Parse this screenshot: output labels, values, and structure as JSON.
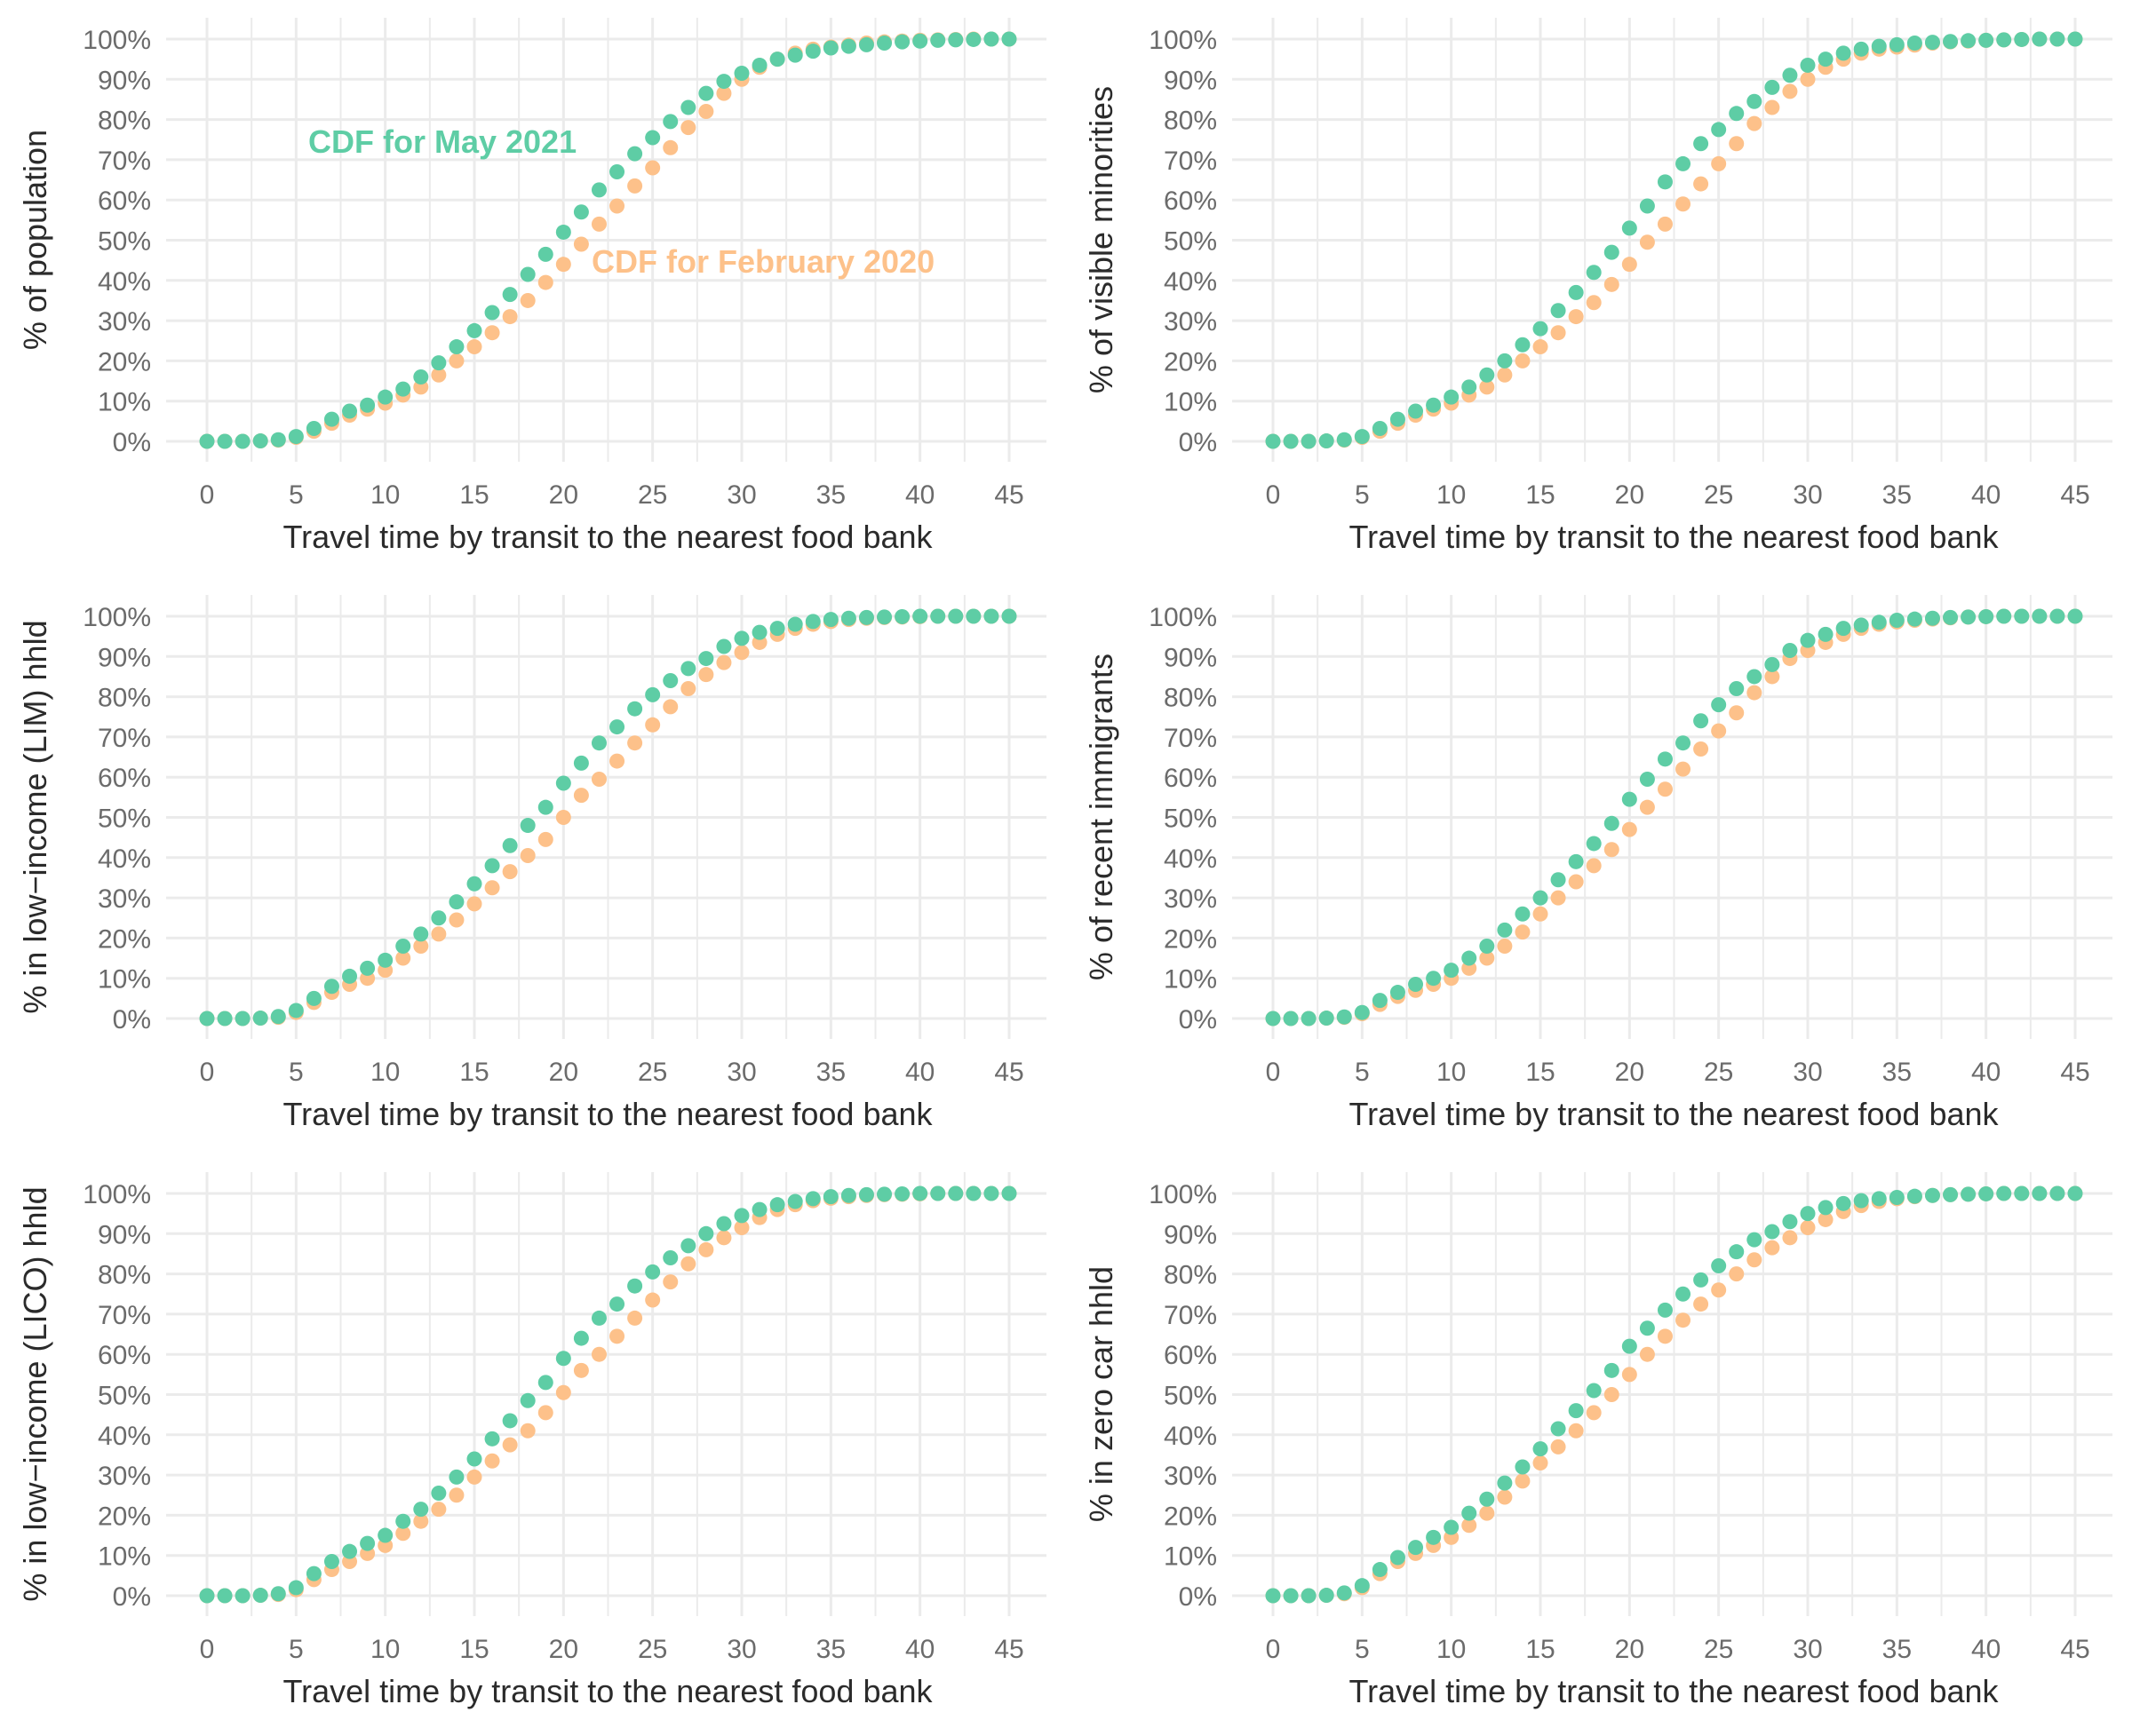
{
  "colors": {
    "may_2021": "#5ecda5",
    "feb_2020": "#fdc18a",
    "grid": "#ebebeb",
    "tick": "#6b6b6b",
    "title": "#2b2b2b"
  },
  "annotations": {
    "may_2021": "CDF for May 2021",
    "feb_2020": "CDF for February 2020"
  },
  "chart_data": [
    {
      "type": "scatter",
      "xlabel": "Travel time by transit to the nearest food bank",
      "ylabel": "% of population",
      "xlim": [
        0,
        45
      ],
      "ylim": [
        0,
        100
      ],
      "x_ticks": [
        0,
        5,
        10,
        15,
        20,
        25,
        30,
        35,
        40,
        45
      ],
      "y_ticks": [
        "0%",
        "10%",
        "20%",
        "30%",
        "40%",
        "50%",
        "60%",
        "70%",
        "80%",
        "90%",
        "100%"
      ],
      "grid": true,
      "x": [
        0,
        1,
        2,
        3,
        4,
        5,
        6,
        7,
        8,
        9,
        10,
        11,
        12,
        13,
        14,
        15,
        16,
        17,
        18,
        19,
        20,
        21,
        22,
        23,
        24,
        25,
        26,
        27,
        28,
        29,
        30,
        31,
        32,
        33,
        34,
        35,
        36,
        37,
        38,
        39,
        40,
        41,
        42,
        43,
        44,
        45
      ],
      "series": [
        {
          "name": "CDF for February 2020",
          "values": [
            0,
            0,
            0,
            0.1,
            0.3,
            1.0,
            2.5,
            4.5,
            6.5,
            8.0,
            9.5,
            11.5,
            13.5,
            16.5,
            20.0,
            23.5,
            27.0,
            31.0,
            35.0,
            39.5,
            44.0,
            49.0,
            54.0,
            58.5,
            63.5,
            68.0,
            73.0,
            78.0,
            82.0,
            86.5,
            90.0,
            93.0,
            95.0,
            96.5,
            97.5,
            98.0,
            98.5,
            99.0,
            99.3,
            99.5,
            99.7,
            99.8,
            99.9,
            100,
            100,
            100
          ]
        },
        {
          "name": "CDF for May 2021",
          "values": [
            0,
            0,
            0,
            0.1,
            0.4,
            1.2,
            3.2,
            5.5,
            7.5,
            9.0,
            11.0,
            13.0,
            16.0,
            19.5,
            23.5,
            27.5,
            32.0,
            36.5,
            41.5,
            46.5,
            52.0,
            57.0,
            62.5,
            67.0,
            71.5,
            75.5,
            79.5,
            83.0,
            86.5,
            89.5,
            91.5,
            93.5,
            95.0,
            96.0,
            97.0,
            97.8,
            98.2,
            98.6,
            99.0,
            99.3,
            99.5,
            99.7,
            99.8,
            99.9,
            100,
            100
          ]
        }
      ]
    },
    {
      "type": "scatter",
      "xlabel": "Travel time by transit to the nearest food bank",
      "ylabel": "% of visible minorities",
      "xlim": [
        0,
        45
      ],
      "ylim": [
        0,
        100
      ],
      "x_ticks": [
        0,
        5,
        10,
        15,
        20,
        25,
        30,
        35,
        40,
        45
      ],
      "y_ticks": [
        "0%",
        "10%",
        "20%",
        "30%",
        "40%",
        "50%",
        "60%",
        "70%",
        "80%",
        "90%",
        "100%"
      ],
      "grid": true,
      "x": [
        0,
        1,
        2,
        3,
        4,
        5,
        6,
        7,
        8,
        9,
        10,
        11,
        12,
        13,
        14,
        15,
        16,
        17,
        18,
        19,
        20,
        21,
        22,
        23,
        24,
        25,
        26,
        27,
        28,
        29,
        30,
        31,
        32,
        33,
        34,
        35,
        36,
        37,
        38,
        39,
        40,
        41,
        42,
        43,
        44,
        45
      ],
      "series": [
        {
          "name": "CDF for February 2020",
          "values": [
            0,
            0,
            0,
            0.1,
            0.3,
            1.0,
            2.5,
            4.5,
            6.5,
            8.0,
            9.5,
            11.5,
            13.5,
            16.5,
            20.0,
            23.5,
            27.0,
            31.0,
            34.5,
            39.0,
            44.0,
            49.5,
            54.0,
            59.0,
            64.0,
            69.0,
            74.0,
            79.0,
            83.0,
            87.0,
            90.0,
            93.0,
            95.0,
            96.5,
            97.5,
            98.0,
            98.5,
            99.0,
            99.3,
            99.5,
            99.7,
            99.8,
            99.9,
            100,
            100,
            100
          ]
        },
        {
          "name": "CDF for May 2021",
          "values": [
            0,
            0,
            0,
            0.1,
            0.4,
            1.2,
            3.2,
            5.5,
            7.5,
            9.0,
            11.0,
            13.5,
            16.5,
            20.0,
            24.0,
            28.0,
            32.5,
            37.0,
            42.0,
            47.0,
            53.0,
            58.5,
            64.5,
            69.0,
            74.0,
            77.5,
            81.5,
            84.5,
            88.0,
            91.0,
            93.5,
            95.0,
            96.5,
            97.5,
            98.2,
            98.6,
            99.0,
            99.2,
            99.4,
            99.6,
            99.7,
            99.8,
            99.9,
            100,
            100,
            100
          ]
        }
      ]
    },
    {
      "type": "scatter",
      "xlabel": "Travel time by transit to the nearest food bank",
      "ylabel": "% in low−income (LIM) hhld",
      "xlim": [
        0,
        45
      ],
      "ylim": [
        0,
        100
      ],
      "x_ticks": [
        0,
        5,
        10,
        15,
        20,
        25,
        30,
        35,
        40,
        45
      ],
      "y_ticks": [
        "0%",
        "10%",
        "20%",
        "30%",
        "40%",
        "50%",
        "60%",
        "70%",
        "80%",
        "90%",
        "100%"
      ],
      "grid": true,
      "x": [
        0,
        1,
        2,
        3,
        4,
        5,
        6,
        7,
        8,
        9,
        10,
        11,
        12,
        13,
        14,
        15,
        16,
        17,
        18,
        19,
        20,
        21,
        22,
        23,
        24,
        25,
        26,
        27,
        28,
        29,
        30,
        31,
        32,
        33,
        34,
        35,
        36,
        37,
        38,
        39,
        40,
        41,
        42,
        43,
        44,
        45
      ],
      "series": [
        {
          "name": "CDF for February 2020",
          "values": [
            0,
            0,
            0,
            0.1,
            0.3,
            1.5,
            4.0,
            6.5,
            8.5,
            10.0,
            12.0,
            15.0,
            18.0,
            21.0,
            24.5,
            28.5,
            32.5,
            36.5,
            40.5,
            44.5,
            50.0,
            55.5,
            59.5,
            64.0,
            68.5,
            73.0,
            77.5,
            82.0,
            85.5,
            88.5,
            91.0,
            93.5,
            95.5,
            97.0,
            98.0,
            98.7,
            99.2,
            99.5,
            99.7,
            99.8,
            99.9,
            100,
            100,
            100,
            100,
            100
          ]
        },
        {
          "name": "CDF for May 2021",
          "values": [
            0,
            0,
            0,
            0.1,
            0.5,
            2.0,
            5.0,
            8.0,
            10.5,
            12.5,
            14.5,
            18.0,
            21.0,
            25.0,
            29.0,
            33.5,
            38.0,
            43.0,
            48.0,
            52.5,
            58.5,
            63.5,
            68.5,
            72.5,
            77.0,
            80.5,
            84.0,
            87.0,
            89.5,
            92.5,
            94.5,
            96.0,
            97.0,
            98.0,
            98.7,
            99.2,
            99.5,
            99.7,
            99.8,
            99.9,
            100,
            100,
            100,
            100,
            100,
            100
          ]
        }
      ]
    },
    {
      "type": "scatter",
      "xlabel": "Travel time by transit to the nearest food bank",
      "ylabel": "% of recent immigrants",
      "xlim": [
        0,
        45
      ],
      "ylim": [
        0,
        100
      ],
      "x_ticks": [
        0,
        5,
        10,
        15,
        20,
        25,
        30,
        35,
        40,
        45
      ],
      "y_ticks": [
        "0%",
        "10%",
        "20%",
        "30%",
        "40%",
        "50%",
        "60%",
        "70%",
        "80%",
        "90%",
        "100%"
      ],
      "grid": true,
      "x": [
        0,
        1,
        2,
        3,
        4,
        5,
        6,
        7,
        8,
        9,
        10,
        11,
        12,
        13,
        14,
        15,
        16,
        17,
        18,
        19,
        20,
        21,
        22,
        23,
        24,
        25,
        26,
        27,
        28,
        29,
        30,
        31,
        32,
        33,
        34,
        35,
        36,
        37,
        38,
        39,
        40,
        41,
        42,
        43,
        44,
        45
      ],
      "series": [
        {
          "name": "CDF for February 2020",
          "values": [
            0,
            0,
            0,
            0.1,
            0.3,
            1.2,
            3.5,
            5.5,
            7.0,
            8.5,
            10.0,
            12.5,
            15.0,
            18.0,
            21.5,
            26.0,
            30.0,
            34.0,
            38.0,
            42.0,
            47.0,
            52.5,
            57.0,
            62.0,
            67.0,
            71.5,
            76.0,
            81.0,
            85.0,
            89.5,
            91.5,
            93.5,
            95.5,
            97.0,
            98.0,
            98.6,
            99.0,
            99.3,
            99.6,
            99.8,
            99.9,
            100,
            100,
            100,
            100,
            100
          ]
        },
        {
          "name": "CDF for May 2021",
          "values": [
            0,
            0,
            0,
            0.1,
            0.4,
            1.5,
            4.5,
            6.5,
            8.5,
            10.0,
            12.0,
            15.0,
            18.0,
            22.0,
            26.0,
            30.0,
            34.5,
            39.0,
            43.5,
            48.5,
            54.5,
            59.5,
            64.5,
            68.5,
            74.0,
            78.0,
            82.0,
            85.0,
            88.0,
            91.5,
            94.0,
            95.5,
            97.0,
            97.8,
            98.5,
            99.0,
            99.3,
            99.5,
            99.7,
            99.8,
            99.9,
            100,
            100,
            100,
            100,
            100
          ]
        }
      ]
    },
    {
      "type": "scatter",
      "xlabel": "Travel time by transit to the nearest food bank",
      "ylabel": "% in low−income (LICO) hhld",
      "xlim": [
        0,
        45
      ],
      "ylim": [
        0,
        100
      ],
      "x_ticks": [
        0,
        5,
        10,
        15,
        20,
        25,
        30,
        35,
        40,
        45
      ],
      "y_ticks": [
        "0%",
        "10%",
        "20%",
        "30%",
        "40%",
        "50%",
        "60%",
        "70%",
        "80%",
        "90%",
        "100%"
      ],
      "grid": true,
      "x": [
        0,
        1,
        2,
        3,
        4,
        5,
        6,
        7,
        8,
        9,
        10,
        11,
        12,
        13,
        14,
        15,
        16,
        17,
        18,
        19,
        20,
        21,
        22,
        23,
        24,
        25,
        26,
        27,
        28,
        29,
        30,
        31,
        32,
        33,
        34,
        35,
        36,
        37,
        38,
        39,
        40,
        41,
        42,
        43,
        44,
        45
      ],
      "series": [
        {
          "name": "CDF for February 2020",
          "values": [
            0,
            0,
            0,
            0.1,
            0.3,
            1.5,
            4.0,
            6.5,
            8.5,
            10.5,
            12.5,
            15.5,
            18.5,
            21.5,
            25.0,
            29.5,
            33.5,
            37.5,
            41.0,
            45.5,
            50.5,
            56.0,
            60.0,
            64.5,
            69.0,
            73.5,
            78.0,
            82.5,
            86.0,
            89.0,
            91.5,
            94.0,
            96.0,
            97.2,
            98.2,
            98.8,
            99.2,
            99.5,
            99.7,
            99.8,
            99.9,
            100,
            100,
            100,
            100,
            100
          ]
        },
        {
          "name": "CDF for May 2021",
          "values": [
            0,
            0,
            0,
            0.1,
            0.5,
            2.0,
            5.5,
            8.5,
            11.0,
            13.0,
            15.0,
            18.5,
            21.5,
            25.5,
            29.5,
            34.0,
            39.0,
            43.5,
            48.5,
            53.0,
            59.0,
            64.0,
            69.0,
            72.5,
            77.0,
            80.5,
            84.0,
            87.0,
            90.0,
            92.5,
            94.5,
            96.0,
            97.2,
            98.0,
            98.7,
            99.2,
            99.5,
            99.7,
            99.8,
            99.9,
            100,
            100,
            100,
            100,
            100,
            100
          ]
        }
      ]
    },
    {
      "type": "scatter",
      "xlabel": "Travel time by transit to the nearest food bank",
      "ylabel": "% in zero car hhld",
      "xlim": [
        0,
        45
      ],
      "ylim": [
        0,
        100
      ],
      "x_ticks": [
        0,
        5,
        10,
        15,
        20,
        25,
        30,
        35,
        40,
        45
      ],
      "y_ticks": [
        "0%",
        "10%",
        "20%",
        "30%",
        "40%",
        "50%",
        "60%",
        "70%",
        "80%",
        "90%",
        "100%"
      ],
      "grid": true,
      "x": [
        0,
        1,
        2,
        3,
        4,
        5,
        6,
        7,
        8,
        9,
        10,
        11,
        12,
        13,
        14,
        15,
        16,
        17,
        18,
        19,
        20,
        21,
        22,
        23,
        24,
        25,
        26,
        27,
        28,
        29,
        30,
        31,
        32,
        33,
        34,
        35,
        36,
        37,
        38,
        39,
        40,
        41,
        42,
        43,
        44,
        45
      ],
      "series": [
        {
          "name": "CDF for February 2020",
          "values": [
            0,
            0,
            0,
            0.1,
            0.5,
            2.0,
            5.5,
            8.5,
            10.5,
            12.5,
            14.5,
            17.5,
            20.5,
            24.5,
            28.5,
            33.0,
            37.0,
            41.0,
            45.5,
            50.0,
            55.0,
            60.0,
            64.5,
            68.5,
            72.5,
            76.0,
            80.0,
            83.5,
            86.5,
            89.0,
            91.5,
            93.5,
            95.5,
            97.0,
            98.0,
            98.7,
            99.2,
            99.5,
            99.7,
            99.8,
            99.9,
            100,
            100,
            100,
            100,
            100
          ]
        },
        {
          "name": "CDF for May 2021",
          "values": [
            0,
            0,
            0,
            0.1,
            0.7,
            2.5,
            6.5,
            9.5,
            12.0,
            14.5,
            17.0,
            20.5,
            24.0,
            28.0,
            32.0,
            36.5,
            41.5,
            46.0,
            51.0,
            56.0,
            62.0,
            66.5,
            71.0,
            75.0,
            78.5,
            82.0,
            85.5,
            88.5,
            90.5,
            93.0,
            95.0,
            96.5,
            97.5,
            98.2,
            98.7,
            99.0,
            99.3,
            99.5,
            99.7,
            99.8,
            99.9,
            100,
            100,
            100,
            100,
            100
          ]
        }
      ]
    }
  ]
}
